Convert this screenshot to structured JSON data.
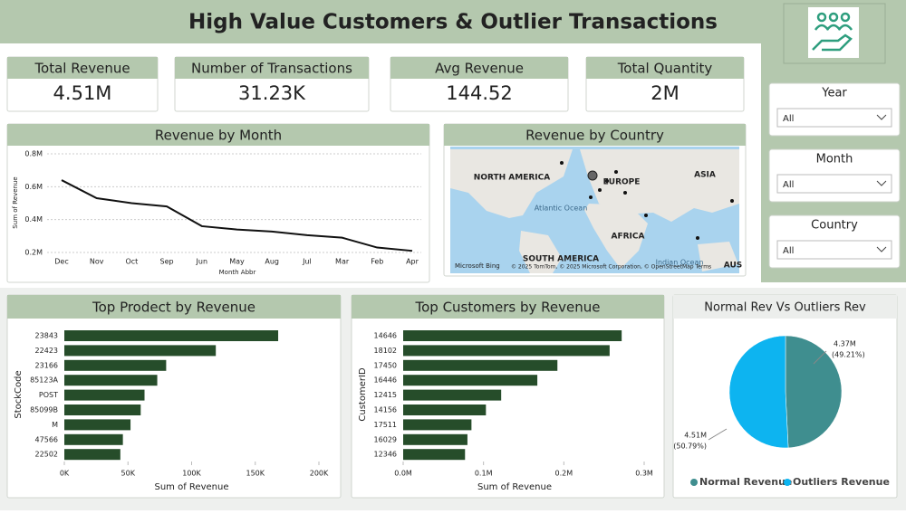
{
  "header": {
    "title": "High Value Customers & Outlier Transactions"
  },
  "kpis": [
    {
      "label": "Total Revenue",
      "value": "4.51M"
    },
    {
      "label": "Number of Transactions",
      "value": "31.23K"
    },
    {
      "label": "Avg Revenue",
      "value": "144.52"
    },
    {
      "label": "Total Quantity",
      "value": "2M"
    }
  ],
  "slicers": [
    {
      "label": "Year",
      "value": "All"
    },
    {
      "label": "Month",
      "value": "All"
    },
    {
      "label": "Country",
      "value": "All"
    }
  ],
  "map": {
    "title": "Revenue by Country",
    "labels": [
      "NORTH AMERICA",
      "EUROPE",
      "ASIA",
      "Atlantic Ocean",
      "AFRICA",
      "SOUTH AMERICA",
      "Indian Ocean",
      "AUS"
    ],
    "attribution": "© 2025 TomTom, © 2025 Microsoft Corporation, © OpenStreetMap  Terms",
    "brand": "Microsoft Bing"
  },
  "chart_data": [
    {
      "type": "line",
      "title": "Revenue by Month",
      "x_label": "Month Abbr",
      "y_label": "Sum of Revenue",
      "categories": [
        "Dec",
        "Nov",
        "Oct",
        "Sep",
        "Jun",
        "May",
        "Aug",
        "Jul",
        "Mar",
        "Feb",
        "Apr"
      ],
      "values": [
        0.64,
        0.53,
        0.5,
        0.48,
        0.36,
        0.34,
        0.327,
        0.305,
        0.29,
        0.23,
        0.21
      ],
      "color": "#111111",
      "ylim": [
        0.2,
        0.8
      ],
      "yticks": [
        {
          "value": 0.2,
          "label": "0.2M"
        },
        {
          "value": 0.4,
          "label": "0.4M"
        },
        {
          "value": 0.6,
          "label": "0.6M"
        },
        {
          "value": 0.8,
          "label": "0.8M"
        }
      ],
      "grid": true
    },
    {
      "type": "hbar",
      "title": "Top Prodect by Revenue",
      "x_label": "Sum of Revenue",
      "y_label": "StockCode",
      "categories": [
        "23843",
        "22423",
        "23166",
        "85123A",
        "POST",
        "85099B",
        "M",
        "47566",
        "22502"
      ],
      "values": [
        168000,
        119000,
        80000,
        73000,
        63000,
        60000,
        52000,
        46000,
        44000
      ],
      "color": "#264d2a",
      "xlim": [
        0,
        200000
      ],
      "xticks": [
        {
          "value": 0,
          "label": "0K"
        },
        {
          "value": 50000,
          "label": "50K"
        },
        {
          "value": 100000,
          "label": "100K"
        },
        {
          "value": 150000,
          "label": "150K"
        },
        {
          "value": 200000,
          "label": "200K"
        }
      ]
    },
    {
      "type": "hbar",
      "title": "Top Customers by Revenue",
      "x_label": "Sum of Revenue",
      "y_label": "CustomerID",
      "categories": [
        "14646",
        "18102",
        "17450",
        "16446",
        "12415",
        "14156",
        "17511",
        "16029",
        "12346"
      ],
      "values": [
        0.272,
        0.257,
        0.192,
        0.167,
        0.122,
        0.103,
        0.085,
        0.08,
        0.077
      ],
      "color": "#264d2a",
      "xlim": [
        0,
        0.3
      ],
      "xticks": [
        {
          "value": 0,
          "label": "0.0M"
        },
        {
          "value": 0.1,
          "label": "0.1M"
        },
        {
          "value": 0.2,
          "label": "0.2M"
        },
        {
          "value": 0.3,
          "label": "0.3M"
        }
      ]
    },
    {
      "type": "pie",
      "title": "Normal Rev Vs Outliers Rev",
      "categories": [
        "Normal Revenue",
        "Outliers Revenue"
      ],
      "values": [
        4.37,
        4.51
      ],
      "value_labels": [
        "4.37M",
        "4.51M"
      ],
      "percent_labels": [
        "(49.21%)",
        "(50.79%)"
      ],
      "colors": [
        "#3f8e8f",
        "#0db4f0"
      ]
    }
  ]
}
